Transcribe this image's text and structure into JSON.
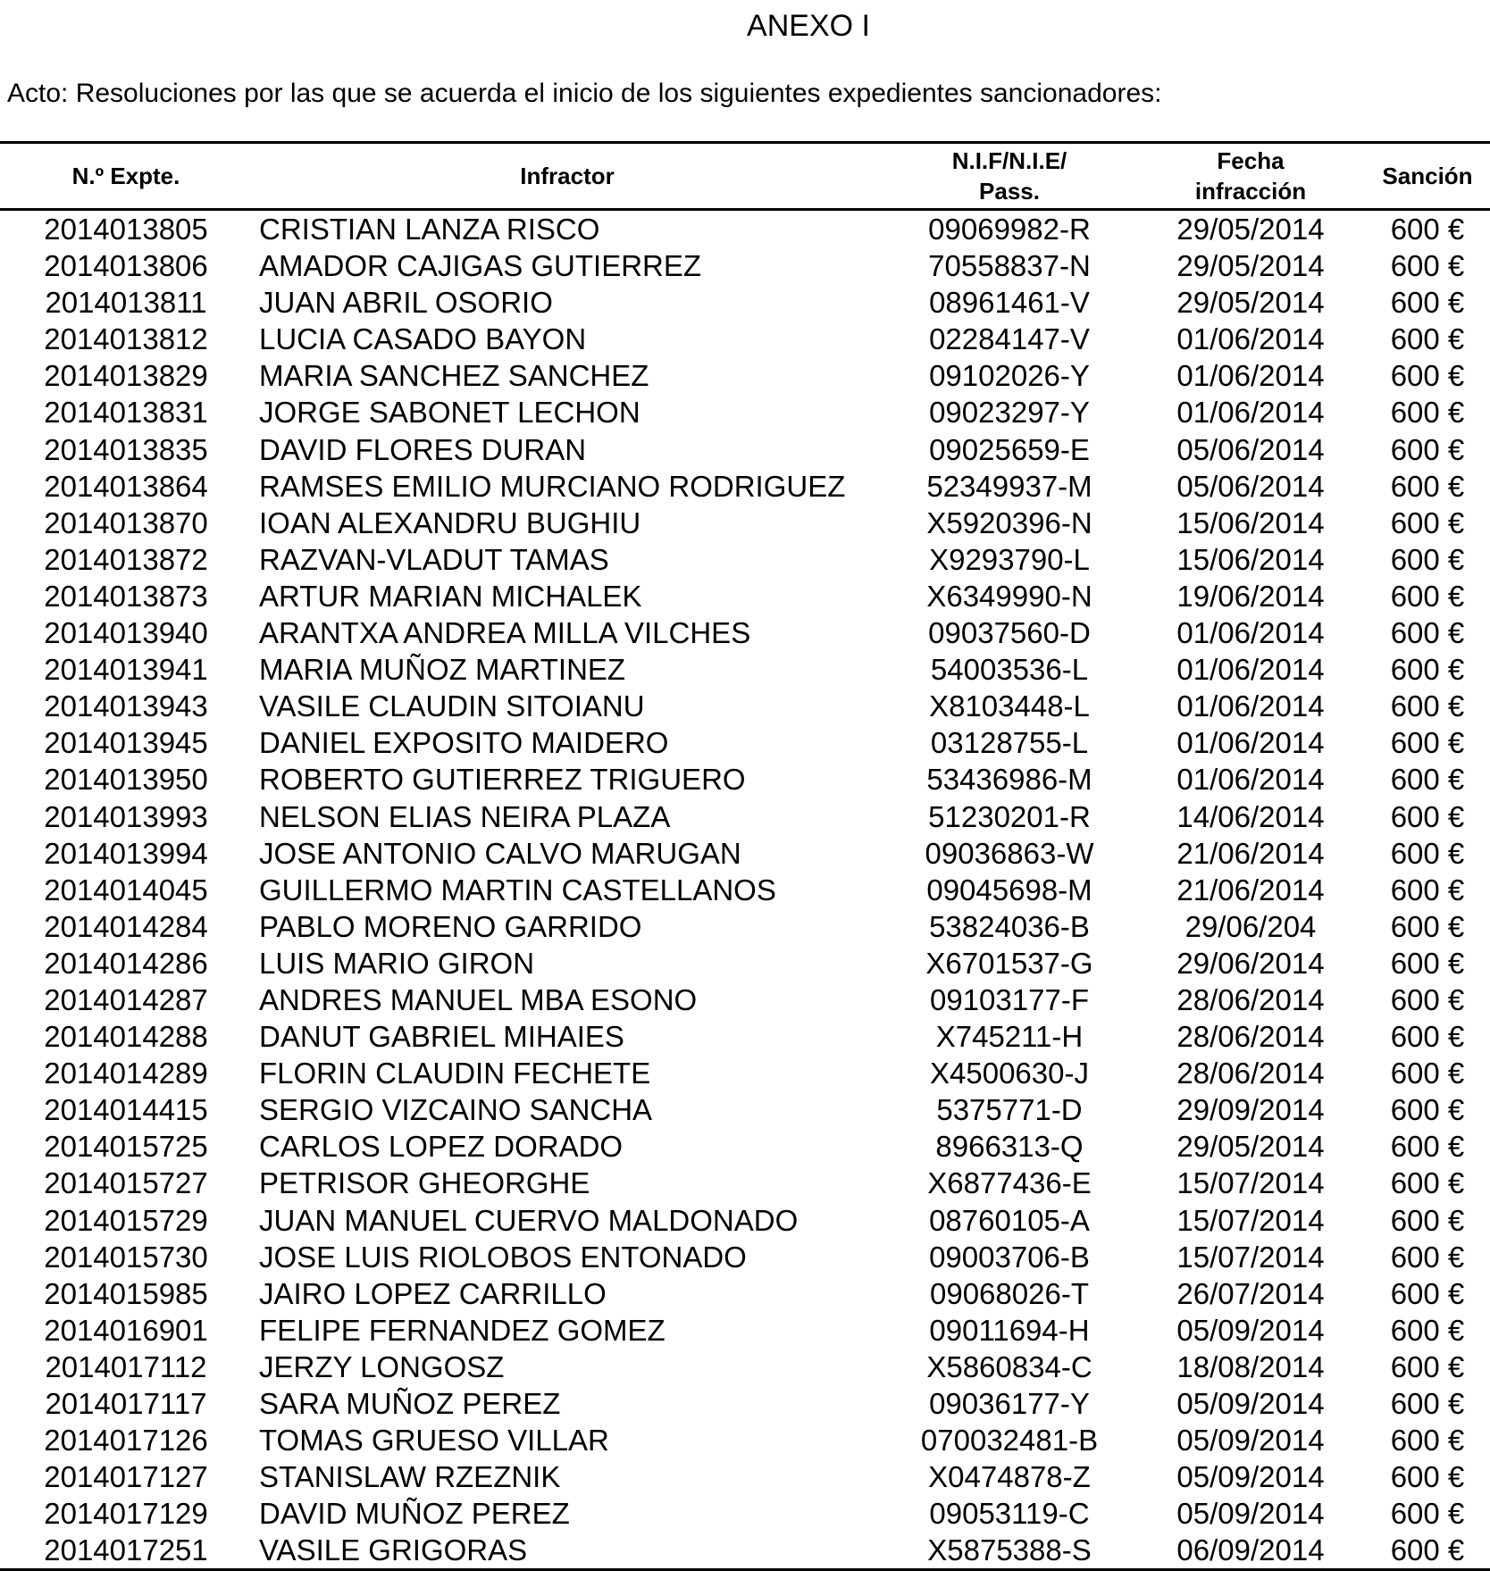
{
  "title": "ANEXO I",
  "acto": "Acto: Resoluciones por las que se acuerda el inicio de los siguientes expedientes sancionadores:",
  "columns": {
    "expte": "N.º Expte.",
    "infractor": "Infractor",
    "nif_line1": "N.I.F/N.I.E/",
    "nif_line2": "Pass.",
    "fecha_line1": "Fecha",
    "fecha_line2": "infracción",
    "sancion": "Sanción"
  },
  "rows": [
    [
      "2014013805",
      "CRISTIAN LANZA RISCO",
      "09069982-R",
      "29/05/2014",
      "600 €"
    ],
    [
      "2014013806",
      "AMADOR CAJIGAS GUTIERREZ",
      "70558837-N",
      "29/05/2014",
      "600 €"
    ],
    [
      "2014013811",
      "JUAN ABRIL OSORIO",
      "08961461-V",
      "29/05/2014",
      "600 €"
    ],
    [
      "2014013812",
      "LUCIA CASADO BAYON",
      "02284147-V",
      "01/06/2014",
      "600 €"
    ],
    [
      "2014013829",
      "MARIA SANCHEZ SANCHEZ",
      "09102026-Y",
      "01/06/2014",
      "600 €"
    ],
    [
      "2014013831",
      "JORGE SABONET LECHON",
      "09023297-Y",
      "01/06/2014",
      "600 €"
    ],
    [
      "2014013835",
      "DAVID FLORES DURAN",
      "09025659-E",
      "05/06/2014",
      "600 €"
    ],
    [
      "2014013864",
      "RAMSES EMILIO MURCIANO RODRIGUEZ",
      "52349937-M",
      "05/06/2014",
      "600 €"
    ],
    [
      "2014013870",
      "IOAN ALEXANDRU BUGHIU",
      "X5920396-N",
      "15/06/2014",
      "600 €"
    ],
    [
      "2014013872",
      "RAZVAN-VLADUT TAMAS",
      "X9293790-L",
      "15/06/2014",
      "600 €"
    ],
    [
      "2014013873",
      "ARTUR MARIAN MICHALEK",
      "X6349990-N",
      "19/06/2014",
      "600 €"
    ],
    [
      "2014013940",
      "ARANTXA ANDREA MILLA VILCHES",
      "09037560-D",
      "01/06/2014",
      "600 €"
    ],
    [
      "2014013941",
      "MARIA MUÑOZ MARTINEZ",
      "54003536-L",
      "01/06/2014",
      "600 €"
    ],
    [
      "2014013943",
      "VASILE CLAUDIN SITOIANU",
      "X8103448-L",
      "01/06/2014",
      "600 €"
    ],
    [
      "2014013945",
      "DANIEL EXPOSITO MAIDERO",
      "03128755-L",
      "01/06/2014",
      "600 €"
    ],
    [
      "2014013950",
      "ROBERTO GUTIERREZ TRIGUERO",
      "53436986-M",
      "01/06/2014",
      "600 €"
    ],
    [
      "2014013993",
      "NELSON ELIAS NEIRA PLAZA",
      "51230201-R",
      "14/06/2014",
      "600 €"
    ],
    [
      "2014013994",
      "JOSE ANTONIO CALVO MARUGAN",
      "09036863-W",
      "21/06/2014",
      "600 €"
    ],
    [
      "2014014045",
      "GUILLERMO MARTIN CASTELLANOS",
      "09045698-M",
      "21/06/2014",
      "600 €"
    ],
    [
      "2014014284",
      "PABLO MORENO GARRIDO",
      "53824036-B",
      "29/06/204",
      "600 €"
    ],
    [
      "2014014286",
      "LUIS MARIO GIRON",
      "X6701537-G",
      "29/06/2014",
      "600 €"
    ],
    [
      "2014014287",
      "ANDRES MANUEL MBA ESONO",
      "09103177-F",
      "28/06/2014",
      "600 €"
    ],
    [
      "2014014288",
      "DANUT GABRIEL MIHAIES",
      "X745211-H",
      "28/06/2014",
      "600 €"
    ],
    [
      "2014014289",
      "FLORIN CLAUDIN FECHETE",
      "X4500630-J",
      "28/06/2014",
      "600 €"
    ],
    [
      "2014014415",
      "SERGIO VIZCAINO SANCHA",
      "5375771-D",
      "29/09/2014",
      "600 €"
    ],
    [
      "2014015725",
      "CARLOS LOPEZ DORADO",
      "8966313-Q",
      "29/05/2014",
      "600 €"
    ],
    [
      "2014015727",
      "PETRISOR GHEORGHE",
      "X6877436-E",
      "15/07/2014",
      "600 €"
    ],
    [
      "2014015729",
      "JUAN MANUEL CUERVO MALDONADO",
      "08760105-A",
      "15/07/2014",
      "600 €"
    ],
    [
      "2014015730",
      "JOSE LUIS RIOLOBOS ENTONADO",
      "09003706-B",
      "15/07/2014",
      "600 €"
    ],
    [
      "2014015985",
      "JAIRO LOPEZ CARRILLO",
      "09068026-T",
      "26/07/2014",
      "600 €"
    ],
    [
      "2014016901",
      "FELIPE FERNANDEZ GOMEZ",
      "09011694-H",
      "05/09/2014",
      "600 €"
    ],
    [
      "2014017112",
      "JERZY LONGOSZ",
      "X5860834-C",
      "18/08/2014",
      "600 €"
    ],
    [
      "2014017117",
      "SARA MUÑOZ PEREZ",
      "09036177-Y",
      "05/09/2014",
      "600 €"
    ],
    [
      "2014017126",
      "TOMAS GRUESO VILLAR",
      "070032481-B",
      "05/09/2014",
      "600 €"
    ],
    [
      "2014017127",
      "STANISLAW RZEZNIK",
      "X0474878-Z",
      "05/09/2014",
      "600 €"
    ],
    [
      "2014017129",
      "DAVID MUÑOZ PEREZ",
      "09053119-C",
      "05/09/2014",
      "600 €"
    ],
    [
      "2014017251",
      "VASILE GRIGORAS",
      "X5875388-S",
      "06/09/2014",
      "600 €"
    ]
  ]
}
